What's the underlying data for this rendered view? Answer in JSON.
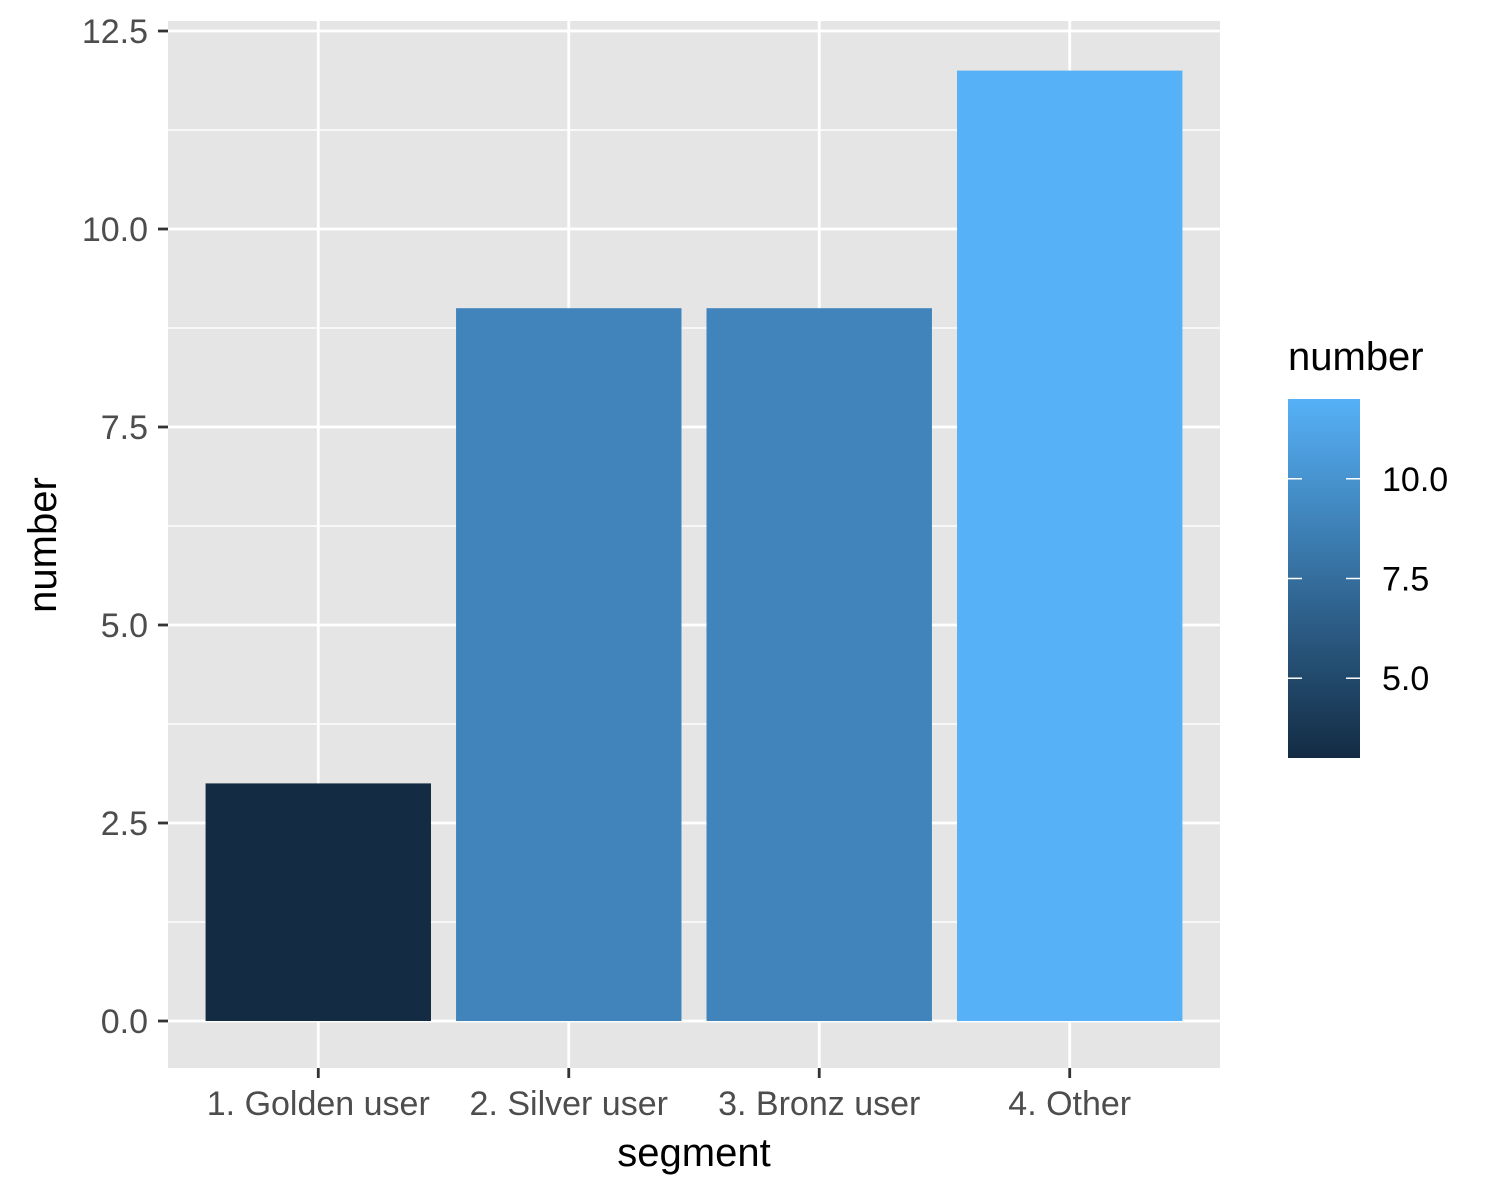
{
  "chart_data": {
    "type": "bar",
    "categories": [
      "1. Golden user",
      "2. Silver user",
      "3. Bronz user",
      "4. Other"
    ],
    "values": [
      3,
      9,
      9,
      12
    ],
    "title": "",
    "xlabel": "segment",
    "ylabel": "number",
    "ylim": [
      0,
      12.5
    ],
    "yticks": [
      0,
      2.5,
      5,
      7.5,
      10,
      12.5
    ],
    "ytick_labels": [
      "0.0",
      "2.5",
      "5.0",
      "7.5",
      "10.0",
      "12.5"
    ],
    "grid": true,
    "legend": {
      "title": "number",
      "type": "colorbar",
      "placement": "right",
      "range": [
        3,
        12
      ],
      "ticks": [
        5,
        7.5,
        10
      ],
      "tick_labels": [
        "5.0",
        "7.5",
        "10.0"
      ],
      "color_low": "#132B43",
      "color_high": "#56B1F7"
    }
  }
}
